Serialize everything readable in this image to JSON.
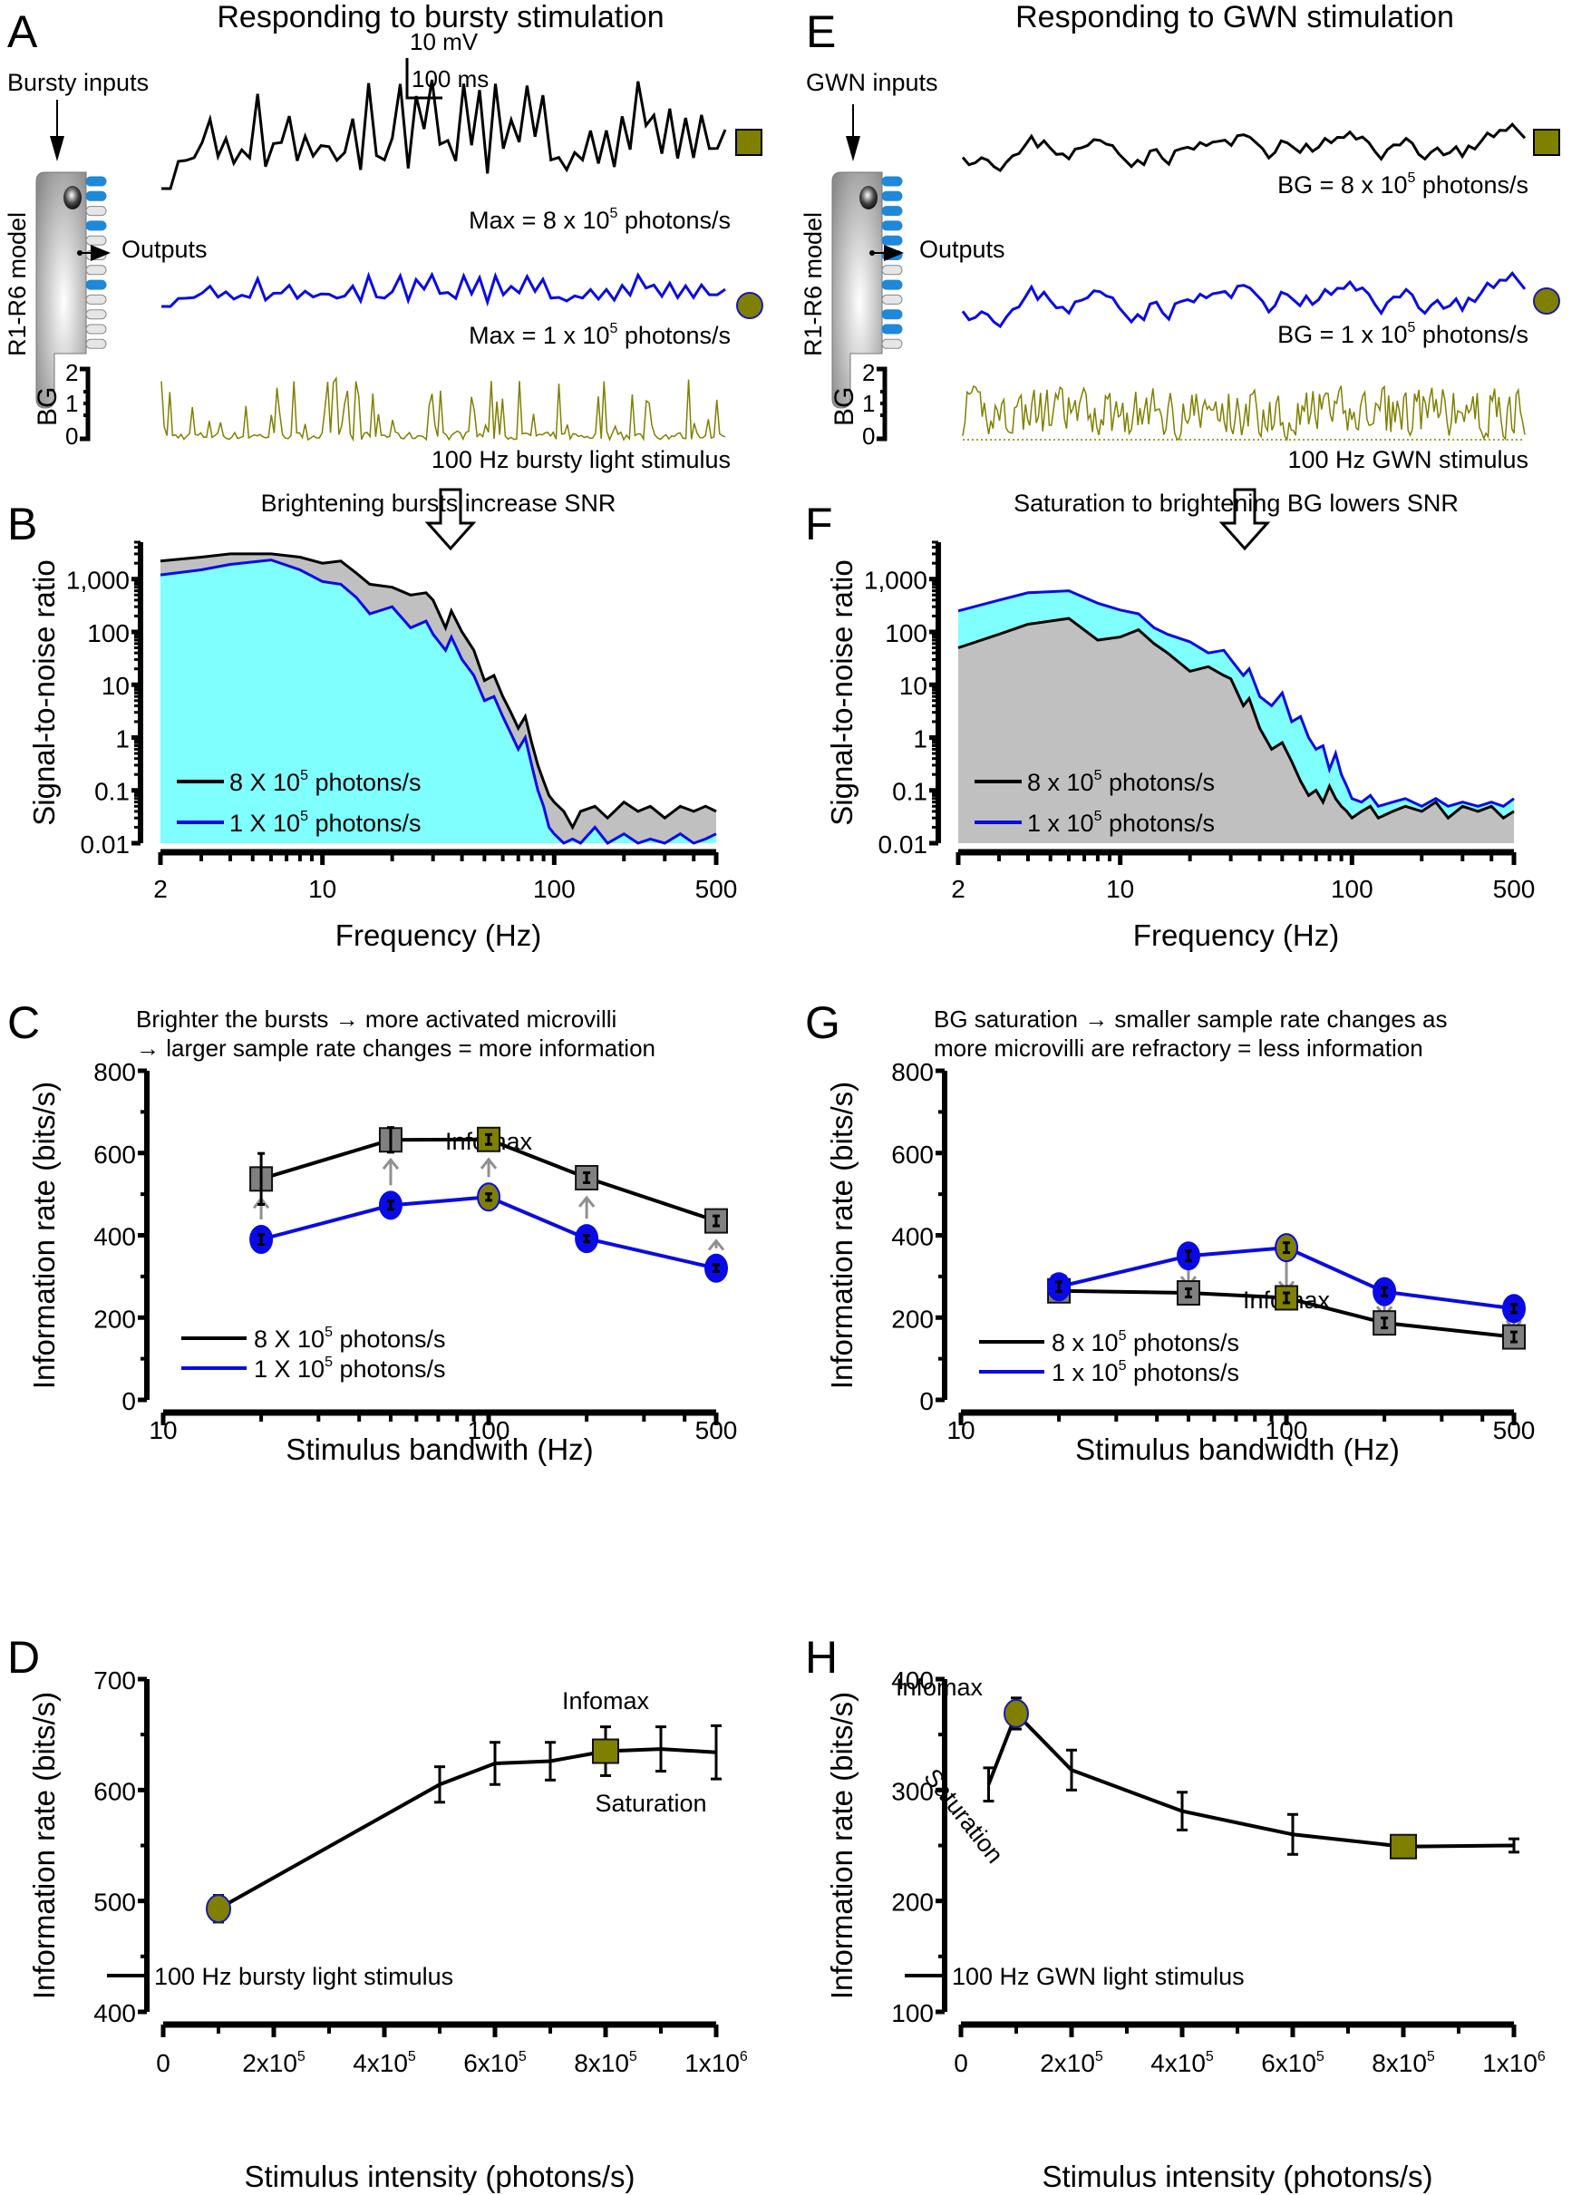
{
  "colors": {
    "black": "#000000",
    "blue": "#0a0ae6",
    "cyan_fill": "#80ffff",
    "gray_fill": "#c0c0c0",
    "olive": "#808000",
    "marker_gray": "#808080",
    "arrow_gray": "#909090",
    "microvilli_blue": "#1f88d8"
  },
  "panels": {
    "A": {
      "letter": "A",
      "title": "Responding to bursty stimulation",
      "inputs_label": "Bursty inputs",
      "model_label": "R1-R6 model",
      "outputs_label": "Outputs",
      "scalebar_v": "10 mV",
      "scalebar_h": "100 ms",
      "trace1_label_pre": "Max = 8 x 10",
      "trace1_label_exp": "5",
      "trace1_label_post": " photons/s",
      "trace2_label_pre": "Max = 1 x 10",
      "trace2_label_exp": "5",
      "trace2_label_post": " photons/s",
      "bg_axis_label": "BG",
      "bg_ticks": [
        "0",
        "1",
        "2"
      ],
      "stimulus_label": "100 Hz bursty light stimulus",
      "active_microvilli": [
        0,
        1,
        3,
        7
      ]
    },
    "E": {
      "letter": "E",
      "title": "Responding to GWN stimulation",
      "inputs_label": "GWN inputs",
      "model_label": "R1-R6 model",
      "outputs_label": "Outputs",
      "trace1_label_pre": "BG = 8 x 10",
      "trace1_label_exp": "5",
      "trace1_label_post": " photons/s",
      "trace2_label_pre": "BG = 1 x 10",
      "trace2_label_exp": "5",
      "trace2_label_post": " photons/s",
      "bg_axis_label": "BG",
      "bg_ticks": [
        "0",
        "1",
        "2"
      ],
      "stimulus_label": "100 Hz GWN stimulus",
      "active_microvilli": [
        0,
        1,
        2,
        3,
        4,
        5,
        7,
        9,
        10
      ]
    }
  },
  "chart_data": [
    {
      "id": "B",
      "letter": "B",
      "type": "area",
      "title": "Brightening bursts increase SNR",
      "xlabel": "Frequency (Hz)",
      "ylabel": "Signal-to-noise ratio",
      "xscale": "log",
      "yscale": "log",
      "xlim": [
        2,
        500
      ],
      "ylim": [
        0.01,
        5000
      ],
      "xticks": [
        {
          "v": 2,
          "label": "2"
        },
        {
          "v": 10,
          "label": "10"
        },
        {
          "v": 100,
          "label": "100"
        },
        {
          "v": 500,
          "label": "500"
        }
      ],
      "yticks": [
        {
          "v": 1000,
          "label": "1,000"
        },
        {
          "v": 100,
          "label": "100"
        },
        {
          "v": 10,
          "label": "10"
        },
        {
          "v": 1,
          "label": "1"
        },
        {
          "v": 0.1,
          "label": "0.1"
        },
        {
          "v": 0.01,
          "label": "0.01"
        }
      ],
      "legend_position": "bottom-left",
      "series": [
        {
          "name": "8 X 10^5 photons/s",
          "legend_pre": "8 X 10",
          "legend_exp": "5",
          "legend_post": " photons/s",
          "color": "#000000",
          "fill": "#c0c0c0",
          "x": [
            2,
            3,
            4,
            6,
            8,
            10,
            12,
            14,
            16,
            20,
            24,
            28,
            30,
            34,
            36,
            40,
            45,
            50,
            55,
            60,
            65,
            70,
            75,
            80,
            85,
            90,
            95,
            100,
            110,
            120,
            130,
            150,
            170,
            200,
            230,
            260,
            300,
            350,
            400,
            450,
            500
          ],
          "y": [
            2200,
            2600,
            3000,
            3000,
            2600,
            2000,
            2200,
            1300,
            800,
            700,
            500,
            550,
            400,
            120,
            250,
            100,
            45,
            12,
            15,
            6,
            3,
            1.5,
            2.5,
            0.8,
            0.3,
            0.15,
            0.08,
            0.06,
            0.04,
            0.02,
            0.04,
            0.05,
            0.03,
            0.06,
            0.04,
            0.05,
            0.03,
            0.05,
            0.04,
            0.05,
            0.04
          ]
        },
        {
          "name": "1 X 10^5 photons/s",
          "legend_pre": "1 X 10",
          "legend_exp": "5",
          "legend_post": " photons/s",
          "color": "#0a0ae6",
          "fill": "#80ffff",
          "x": [
            2,
            3,
            4,
            6,
            8,
            10,
            12,
            14,
            16,
            20,
            24,
            28,
            30,
            34,
            36,
            40,
            45,
            50,
            55,
            60,
            65,
            70,
            75,
            80,
            85,
            90,
            95,
            100,
            110,
            120,
            130,
            150,
            170,
            200,
            230,
            260,
            300,
            350,
            400,
            450,
            500
          ],
          "y": [
            1200,
            1500,
            1900,
            2300,
            1500,
            900,
            800,
            450,
            220,
            300,
            120,
            160,
            90,
            45,
            80,
            30,
            15,
            5,
            6,
            2.5,
            1.2,
            0.6,
            1,
            0.3,
            0.1,
            0.05,
            0.02,
            0.015,
            0.01,
            0.012,
            0.01,
            0.02,
            0.01,
            0.015,
            0.01,
            0.012,
            0.01,
            0.015,
            0.01,
            0.012,
            0.015
          ]
        }
      ]
    },
    {
      "id": "F",
      "letter": "F",
      "type": "area",
      "title": "Saturation to brightening BG lowers SNR",
      "xlabel": "Frequency (Hz)",
      "ylabel": "Signal-to-noise ratio",
      "xscale": "log",
      "yscale": "log",
      "xlim": [
        2,
        500
      ],
      "ylim": [
        0.01,
        5000
      ],
      "xticks": [
        {
          "v": 2,
          "label": "2"
        },
        {
          "v": 10,
          "label": "10"
        },
        {
          "v": 100,
          "label": "100"
        },
        {
          "v": 500,
          "label": "500"
        }
      ],
      "yticks": [
        {
          "v": 1000,
          "label": "1,000"
        },
        {
          "v": 100,
          "label": "100"
        },
        {
          "v": 10,
          "label": "10"
        },
        {
          "v": 1,
          "label": "1"
        },
        {
          "v": 0.1,
          "label": "0.1"
        },
        {
          "v": 0.01,
          "label": "0.01"
        }
      ],
      "legend_position": "bottom-left",
      "series": [
        {
          "name": "8 x 10^5 photons/s",
          "legend_pre": "8 x 10",
          "legend_exp": "5",
          "legend_post": " photons/s",
          "color": "#000000",
          "fill": "#c0c0c0",
          "x": [
            2,
            3,
            4,
            6,
            8,
            10,
            12,
            14,
            16,
            20,
            24,
            28,
            30,
            34,
            36,
            40,
            45,
            50,
            55,
            60,
            65,
            70,
            75,
            80,
            85,
            90,
            95,
            100,
            110,
            120,
            130,
            150,
            170,
            200,
            230,
            260,
            300,
            350,
            400,
            450,
            500
          ],
          "y": [
            50,
            90,
            140,
            180,
            70,
            80,
            110,
            60,
            40,
            18,
            22,
            15,
            13,
            4,
            5.5,
            1.5,
            0.6,
            0.8,
            0.35,
            0.15,
            0.08,
            0.1,
            0.06,
            0.12,
            0.07,
            0.05,
            0.04,
            0.03,
            0.04,
            0.05,
            0.03,
            0.04,
            0.05,
            0.04,
            0.06,
            0.03,
            0.05,
            0.04,
            0.05,
            0.03,
            0.04
          ]
        },
        {
          "name": "1 x 10^5 photons/s",
          "legend_pre": "1 x 10",
          "legend_exp": "5",
          "legend_post": " photons/s",
          "color": "#0a0ae6",
          "fill": "#80ffff",
          "x": [
            2,
            3,
            4,
            6,
            8,
            10,
            12,
            14,
            16,
            20,
            24,
            28,
            30,
            34,
            36,
            40,
            45,
            50,
            55,
            60,
            65,
            70,
            75,
            80,
            85,
            90,
            95,
            100,
            110,
            120,
            130,
            150,
            170,
            200,
            230,
            260,
            300,
            350,
            400,
            450,
            500
          ],
          "y": [
            250,
            400,
            550,
            600,
            350,
            260,
            220,
            120,
            90,
            65,
            40,
            45,
            30,
            15,
            20,
            6,
            4,
            7,
            2,
            2.5,
            1,
            0.6,
            0.7,
            0.25,
            0.5,
            0.2,
            0.12,
            0.07,
            0.06,
            0.08,
            0.05,
            0.06,
            0.07,
            0.05,
            0.07,
            0.05,
            0.06,
            0.05,
            0.06,
            0.05,
            0.07
          ]
        }
      ]
    },
    {
      "id": "C",
      "letter": "C",
      "type": "line",
      "subtitle_line1": "Brighter the bursts → more activated microvilli",
      "subtitle_line2": "→ larger sample rate changes = more information",
      "annotation": "Infomax",
      "xlabel": "Stimulus bandwith (Hz)",
      "ylabel": "Information rate (bits/s)",
      "xscale": "log",
      "xlim": [
        10,
        500
      ],
      "ylim": [
        0,
        800
      ],
      "xticks": [
        {
          "v": 10,
          "label": "10"
        },
        {
          "v": 100,
          "label": "100"
        },
        {
          "v": 500,
          "label": "500"
        }
      ],
      "yticks": [
        {
          "v": 0,
          "label": "0"
        },
        {
          "v": 200,
          "label": "200"
        },
        {
          "v": 400,
          "label": "400"
        },
        {
          "v": 600,
          "label": "600"
        },
        {
          "v": 800,
          "label": "800"
        }
      ],
      "legend_position": "bottom-left",
      "arrow_direction": "up",
      "highlight_index": 2,
      "x": [
        20,
        50,
        100,
        200,
        500
      ],
      "series": [
        {
          "name": "8 X 10^5 photons/s",
          "legend_pre": "8 X 10",
          "legend_exp": "5",
          "legend_post": " photons/s",
          "color": "#000000",
          "marker": "square",
          "values": [
            537,
            632,
            633,
            540,
            435
          ],
          "errors": [
            62,
            30,
            12,
            12,
            12
          ]
        },
        {
          "name": "1 X 10^5 photons/s",
          "legend_pre": "1 X 10",
          "legend_exp": "5",
          "legend_post": " photons/s",
          "color": "#0a0ae6",
          "marker": "circle",
          "values": [
            390,
            473,
            493,
            392,
            320
          ],
          "errors": [
            12,
            10,
            8,
            8,
            8
          ]
        }
      ]
    },
    {
      "id": "G",
      "letter": "G",
      "type": "line",
      "subtitle_line1": "BG saturation → smaller sample rate changes as",
      "subtitle_line2": "more microvilli are refractory = less information",
      "annotation": "Infomax",
      "xlabel": "Stimulus bandwidth (Hz)",
      "ylabel": "Information rate (bits/s)",
      "xscale": "log",
      "xlim": [
        10,
        500
      ],
      "ylim": [
        0,
        800
      ],
      "xticks": [
        {
          "v": 10,
          "label": "10"
        },
        {
          "v": 100,
          "label": "100"
        },
        {
          "v": 500,
          "label": "500"
        }
      ],
      "yticks": [
        {
          "v": 0,
          "label": "0"
        },
        {
          "v": 200,
          "label": "200"
        },
        {
          "v": 400,
          "label": "400"
        },
        {
          "v": 600,
          "label": "600"
        },
        {
          "v": 800,
          "label": "800"
        }
      ],
      "legend_position": "bottom-left",
      "arrow_direction": "down",
      "highlight_index": 2,
      "x": [
        20,
        50,
        100,
        200,
        500
      ],
      "series": [
        {
          "name": "8 x 10^5 photons/s",
          "legend_pre": "8 x 10",
          "legend_exp": "5",
          "legend_post": " photons/s",
          "color": "#000000",
          "marker": "square",
          "values": [
            265,
            260,
            248,
            187,
            153
          ],
          "errors": [
            12,
            10,
            12,
            12,
            12
          ]
        },
        {
          "name": "1 x 10^5 photons/s",
          "legend_pre": "1 x 10",
          "legend_exp": "5",
          "legend_post": " photons/s",
          "color": "#0a0ae6",
          "marker": "circle",
          "values": [
            275,
            350,
            370,
            263,
            222
          ],
          "errors": [
            12,
            12,
            12,
            10,
            10
          ]
        }
      ]
    },
    {
      "id": "D",
      "letter": "D",
      "type": "line",
      "annotation_top": "Infomax",
      "annotation_bottom": "Saturation",
      "xlabel": "Stimulus intensity (photons/s)",
      "ylabel": "Information rate (bits/s)",
      "xlim": [
        0,
        1000000
      ],
      "ylim": [
        400,
        700
      ],
      "xticks": [
        {
          "v": 0,
          "label": "0",
          "exp": ""
        },
        {
          "v": 200000,
          "label": "2x10",
          "exp": "5"
        },
        {
          "v": 400000,
          "label": "4x10",
          "exp": "5"
        },
        {
          "v": 600000,
          "label": "6x10",
          "exp": "5"
        },
        {
          "v": 800000,
          "label": "8x10",
          "exp": "5"
        },
        {
          "v": 1000000,
          "label": "1x10",
          "exp": "6"
        }
      ],
      "yticks": [
        {
          "v": 400,
          "label": "400"
        },
        {
          "v": 500,
          "label": "500"
        },
        {
          "v": 600,
          "label": "600"
        },
        {
          "v": 700,
          "label": "700"
        }
      ],
      "legend_position": "bottom-left",
      "series": [
        {
          "name": "100 Hz bursty light stimulus",
          "color": "#000000",
          "x": [
            100000,
            500000,
            600000,
            700000,
            800000,
            900000,
            1000000
          ],
          "values": [
            493,
            605,
            624,
            626,
            635,
            637,
            634
          ],
          "errors": [
            12,
            16,
            19,
            17,
            22,
            20,
            24
          ],
          "circle_index": 0,
          "square_index": 4
        }
      ]
    },
    {
      "id": "H",
      "letter": "H",
      "type": "line",
      "annotation_top": "Infomax",
      "annotation_bottom": "Saturation",
      "xlabel": "Stimulus intensity (photons/s)",
      "ylabel": "Information rate (bits/s)",
      "xlim": [
        0,
        1000000
      ],
      "ylim": [
        100,
        400
      ],
      "xticks": [
        {
          "v": 0,
          "label": "0",
          "exp": ""
        },
        {
          "v": 200000,
          "label": "2x10",
          "exp": "5"
        },
        {
          "v": 400000,
          "label": "4x10",
          "exp": "5"
        },
        {
          "v": 600000,
          "label": "6x10",
          "exp": "5"
        },
        {
          "v": 800000,
          "label": "8x10",
          "exp": "5"
        },
        {
          "v": 1000000,
          "label": "1x10",
          "exp": "6"
        }
      ],
      "yticks": [
        {
          "v": 100,
          "label": "100"
        },
        {
          "v": 200,
          "label": "200"
        },
        {
          "v": 300,
          "label": "300"
        },
        {
          "v": 400,
          "label": "400"
        }
      ],
      "legend_position": "bottom-left",
      "series": [
        {
          "name": "100 Hz GWN light stimulus",
          "color": "#000000",
          "x": [
            50000,
            100000,
            200000,
            400000,
            600000,
            800000,
            1000000
          ],
          "values": [
            305,
            369,
            318,
            281,
            260,
            249,
            250
          ],
          "errors": [
            15,
            14,
            18,
            17,
            18,
            10,
            6
          ],
          "circle_index": 1,
          "square_index": 5
        }
      ]
    }
  ]
}
